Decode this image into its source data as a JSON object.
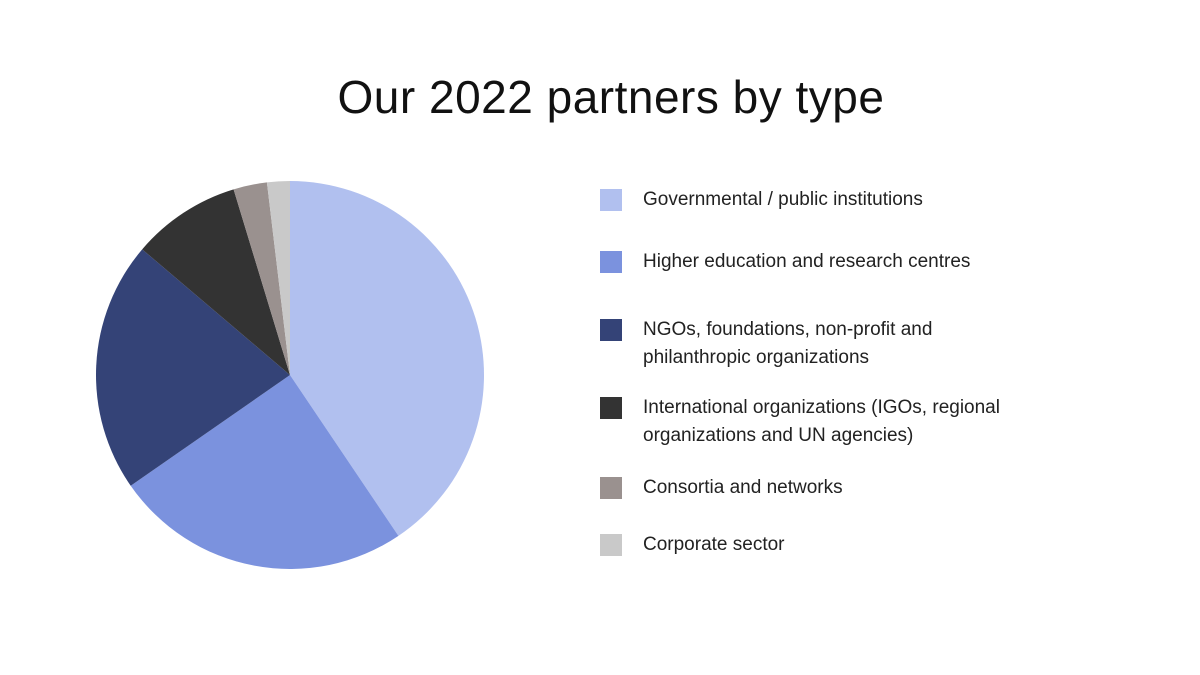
{
  "chart_data": {
    "type": "pie",
    "title": "Our 2022 partners by type",
    "legend_position": "right",
    "start_angle": "12 o'clock",
    "direction": "clockwise",
    "slices": [
      {
        "label": "Governmental / public institutions",
        "value": 40.6,
        "color": "#b1c0ef"
      },
      {
        "label": "Higher education and research centres",
        "value": 24.8,
        "color": "#7b92de"
      },
      {
        "label": "NGOs, foundations, non-profit and philanthropic organizations",
        "value": 20.9,
        "color": "#344377"
      },
      {
        "label": "International organizations (IGOs, regional organizations and UN agencies)",
        "value": 9.1,
        "color": "#333333"
      },
      {
        "label": "Consortia and networks",
        "value": 2.8,
        "color": "#9a918f"
      },
      {
        "label": "Corporate sector",
        "value": 1.9,
        "color": "#c9c9c9"
      }
    ]
  }
}
